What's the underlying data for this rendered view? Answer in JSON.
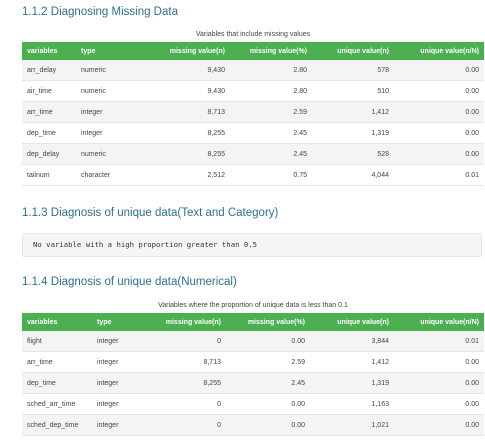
{
  "sections": {
    "s112": {
      "title": "1.1.2 Diagnosing Missing Data",
      "caption": "Variables that include missing values",
      "headers": [
        "variables",
        "type",
        "missing value(n)",
        "missing value(%)",
        "unique value(n)",
        "unique value(n/N)"
      ],
      "rows": [
        [
          "arr_delay",
          "numeric",
          "9,430",
          "2.80",
          "578",
          "0.00"
        ],
        [
          "air_time",
          "numeric",
          "9,430",
          "2.80",
          "510",
          "0.00"
        ],
        [
          "arr_time",
          "integer",
          "8,713",
          "2.59",
          "1,412",
          "0.00"
        ],
        [
          "dep_time",
          "integer",
          "8,255",
          "2.45",
          "1,319",
          "0.00"
        ],
        [
          "dep_delay",
          "numeric",
          "8,255",
          "2.45",
          "528",
          "0.00"
        ],
        [
          "tailnum",
          "character",
          "2,512",
          "0.75",
          "4,044",
          "0.01"
        ]
      ]
    },
    "s113": {
      "title": "1.1.3 Diagnosis of unique data(Text and Category)",
      "code": "No variable with a high proportion greater than 0.5"
    },
    "s114": {
      "title": "1.1.4 Diagnosis of unique data(Numerical)",
      "caption": "Variables where the proportion of unique data is less than 0.1",
      "headers": [
        "variables",
        "type",
        "missing value(n)",
        "missing value(%)",
        "unique value(n)",
        "unique value(n/N)"
      ],
      "rows": [
        [
          "flight",
          "integer",
          "0",
          "0.00",
          "3,844",
          "0.01"
        ],
        [
          "arr_time",
          "integer",
          "8,713",
          "2.59",
          "1,412",
          "0.00"
        ],
        [
          "dep_time",
          "integer",
          "8,255",
          "2.45",
          "1,319",
          "0.00"
        ],
        [
          "sched_arr_time",
          "integer",
          "0",
          "0.00",
          "1,163",
          "0.00"
        ],
        [
          "sched_dep_time",
          "integer",
          "0",
          "0.00",
          "1,021",
          "0.00"
        ]
      ]
    }
  },
  "colors": {
    "header_green": "#4caf50",
    "title_blue": "#2f6f8f",
    "stripe": "#f4f4f4"
  }
}
